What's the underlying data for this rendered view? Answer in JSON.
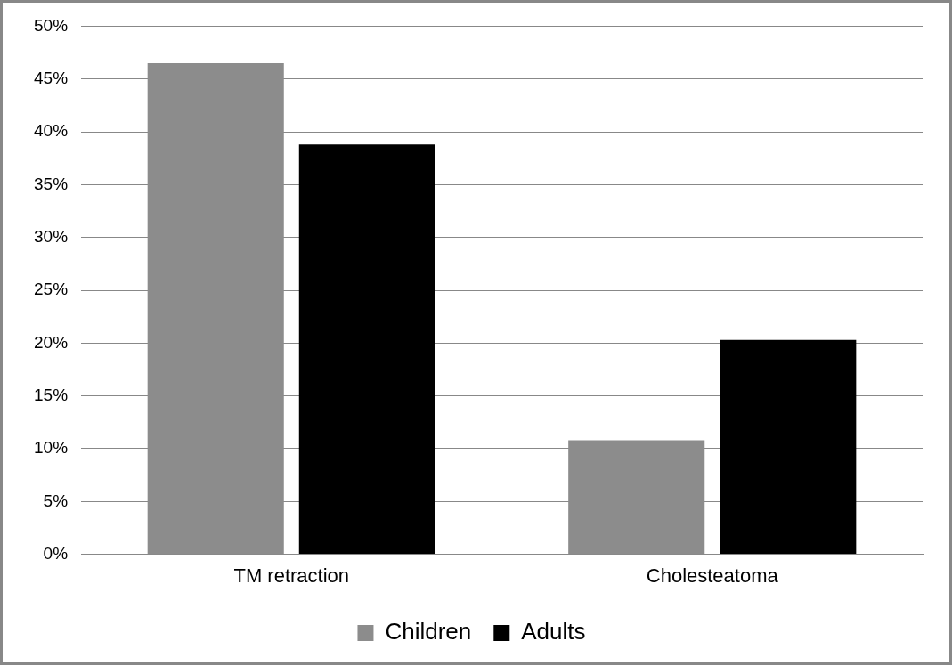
{
  "chart_data": {
    "type": "bar",
    "categories": [
      "TM retraction",
      "Cholesteatoma"
    ],
    "series": [
      {
        "name": "Children",
        "color": "#8c8c8c",
        "values": [
          46.5,
          10.8
        ]
      },
      {
        "name": "Adults",
        "color": "#000000",
        "values": [
          38.8,
          20.3
        ]
      }
    ],
    "ylim": [
      0,
      50
    ],
    "yticks": [
      {
        "value": 0,
        "label": "0%"
      },
      {
        "value": 5,
        "label": "5%"
      },
      {
        "value": 10,
        "label": "10%"
      },
      {
        "value": 15,
        "label": "15%"
      },
      {
        "value": 20,
        "label": "20%"
      },
      {
        "value": 25,
        "label": "25%"
      },
      {
        "value": 30,
        "label": "30%"
      },
      {
        "value": 35,
        "label": "35%"
      },
      {
        "value": 40,
        "label": "40%"
      },
      {
        "value": 45,
        "label": "45%"
      },
      {
        "value": 50,
        "label": "50%"
      }
    ],
    "grid": "y",
    "legend": "bottom"
  }
}
